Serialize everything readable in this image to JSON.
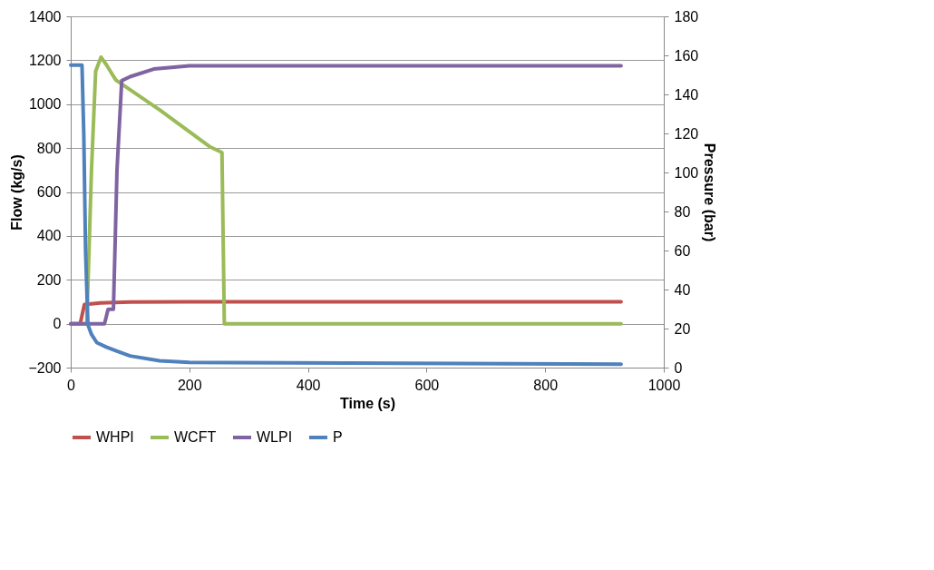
{
  "chart_data": {
    "type": "line",
    "xlabel": "Time (s)",
    "ylabel": "Flow (kg/s)",
    "y2label": "Pressure (bar)",
    "xlim": [
      0,
      1000
    ],
    "xticks": [
      0,
      200,
      400,
      600,
      800,
      1000
    ],
    "ylim": [
      -200,
      1400
    ],
    "yticks": [
      -200,
      0,
      200,
      400,
      600,
      800,
      1000,
      1200,
      1400
    ],
    "y2lim": [
      0,
      180
    ],
    "y2ticks": [
      0,
      20,
      40,
      60,
      80,
      100,
      120,
      140,
      160,
      180
    ],
    "grid": "y",
    "legend": "bottom",
    "marker": "none",
    "line_style": "solid",
    "series": [
      {
        "name": "WHPI",
        "color": "#c0504d",
        "x": [
          0,
          16,
          23,
          50,
          100,
          200,
          928
        ],
        "values": [
          0,
          0,
          87,
          95,
          99,
          100,
          100
        ]
      },
      {
        "name": "WCFT",
        "color": "#9bbb59",
        "x": [
          0,
          27,
          35,
          42,
          51,
          60,
          76,
          150,
          234,
          255,
          259,
          928
        ],
        "values": [
          0,
          0,
          700,
          1150,
          1214,
          1180,
          1110,
          974,
          807,
          780,
          0,
          0
        ]
      },
      {
        "name": "WLPI",
        "color": "#8064a2",
        "x": [
          0,
          57,
          63,
          72,
          78,
          86,
          100,
          140,
          200,
          928
        ],
        "values": [
          0,
          0,
          66,
          66,
          700,
          1107,
          1125,
          1160,
          1175,
          1175
        ]
      },
      {
        "name": "P",
        "color": "#4f81bd",
        "axis": "y2",
        "x": [
          0,
          19,
          22,
          25,
          29,
          35,
          44,
          60,
          78,
          100,
          150,
          200,
          928
        ],
        "values": [
          155,
          155,
          120,
          60,
          22,
          17,
          12.8,
          10.5,
          8.4,
          6,
          3.5,
          2.7,
          1.8
        ]
      }
    ]
  }
}
